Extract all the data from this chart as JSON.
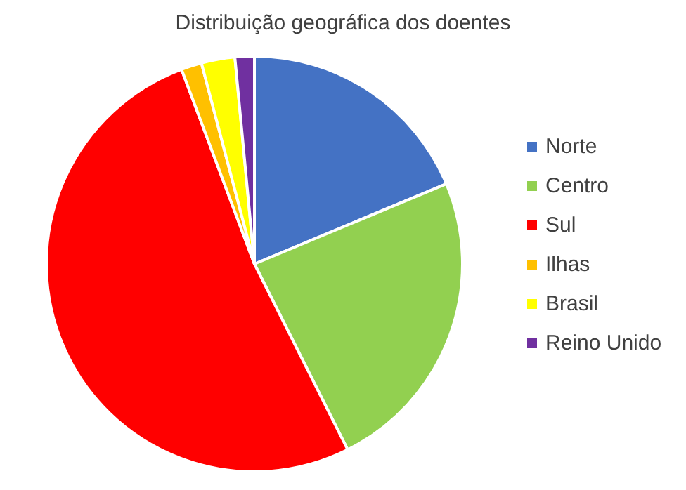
{
  "chart_data": {
    "type": "pie",
    "title": "Distribuição geográfica dos doentes",
    "categories": [
      "Norte",
      "Centro",
      "Sul",
      "Ilhas",
      "Brasil",
      "Reino Unido"
    ],
    "values": [
      18.7,
      23.9,
      51.7,
      1.6,
      2.6,
      1.5
    ],
    "colors": [
      "#4472c4",
      "#92d050",
      "#ff0000",
      "#ffc000",
      "#ffff00",
      "#7030a0"
    ],
    "legend": "right"
  }
}
